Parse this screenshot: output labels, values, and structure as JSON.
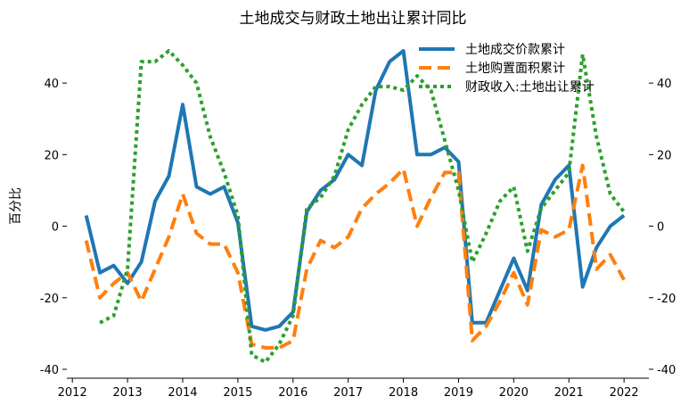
{
  "chart_data": {
    "type": "line",
    "title": "土地成交与财政土地出让累计同比",
    "ylabel": "百分比",
    "xlabel": "",
    "xlim": [
      2011.9,
      2022.45
    ],
    "ylim": [
      -42.5,
      52
    ],
    "x_ticks": [
      2012,
      2013,
      2014,
      2015,
      2016,
      2017,
      2018,
      2019,
      2020,
      2021,
      2022
    ],
    "y_ticks": [
      -40,
      -20,
      0,
      20,
      40
    ],
    "grid": false,
    "legend_position": "top-right",
    "series": [
      {
        "name": "土地成交价款累计",
        "color": "#1f77b4",
        "style": "solid",
        "x": [
          2012.25,
          2012.5,
          2012.75,
          2013.0,
          2013.25,
          2013.5,
          2013.75,
          2014.0,
          2014.25,
          2014.5,
          2014.75,
          2015.0,
          2015.25,
          2015.5,
          2015.75,
          2016.0,
          2016.25,
          2016.5,
          2016.75,
          2017.0,
          2017.25,
          2017.5,
          2017.75,
          2018.0,
          2018.25,
          2018.5,
          2018.75,
          2019.0,
          2019.25,
          2019.5,
          2019.75,
          2020.0,
          2020.25,
          2020.5,
          2020.75,
          2021.0,
          2021.25,
          2021.5,
          2021.75,
          2022.0
        ],
        "y": [
          3,
          -13,
          -11,
          -16,
          -10,
          7,
          14,
          34,
          11,
          9,
          11,
          1,
          -28,
          -29,
          -28,
          -24,
          4,
          10,
          13,
          20,
          17,
          38,
          46,
          49,
          20,
          20,
          22,
          18,
          -27,
          -27,
          -18,
          -9,
          -18,
          6,
          13,
          17,
          -17,
          -6,
          0,
          3
        ]
      },
      {
        "name": "土地购置面积累计",
        "color": "#ff7f0e",
        "style": "dashed",
        "x": [
          2012.25,
          2012.5,
          2012.75,
          2013.0,
          2013.25,
          2013.5,
          2013.75,
          2014.0,
          2014.25,
          2014.5,
          2014.75,
          2015.0,
          2015.25,
          2015.5,
          2015.75,
          2016.0,
          2016.25,
          2016.5,
          2016.75,
          2017.0,
          2017.25,
          2017.5,
          2017.75,
          2018.0,
          2018.25,
          2018.5,
          2018.75,
          2019.0,
          2019.25,
          2019.5,
          2019.75,
          2020.0,
          2020.25,
          2020.5,
          2020.75,
          2021.0,
          2021.25,
          2021.5,
          2021.75,
          2022.0
        ],
        "y": [
          -4,
          -20,
          -16,
          -13,
          -21,
          -12,
          -3,
          9,
          -2,
          -5,
          -5,
          -13,
          -33,
          -34,
          -34,
          -32,
          -12,
          -4,
          -6,
          -3,
          5,
          9,
          12,
          16,
          0,
          8,
          15,
          15,
          -32,
          -28,
          -21,
          -13,
          -22,
          -1,
          -3,
          -1,
          17,
          -12,
          -8,
          -15
        ]
      },
      {
        "name": "财政收入:土地出让累计",
        "color": "#2ca02c",
        "style": "dotted",
        "x": [
          2012.5,
          2012.75,
          2013.0,
          2013.25,
          2013.5,
          2013.75,
          2014.0,
          2014.25,
          2014.5,
          2014.75,
          2015.0,
          2015.25,
          2015.5,
          2015.75,
          2016.0,
          2016.25,
          2016.5,
          2016.75,
          2017.0,
          2017.25,
          2017.5,
          2017.75,
          2018.0,
          2018.25,
          2018.5,
          2018.75,
          2019.0,
          2019.25,
          2019.5,
          2019.75,
          2020.0,
          2020.25,
          2020.5,
          2020.75,
          2021.0,
          2021.25,
          2021.5,
          2021.75,
          2022.0
        ],
        "y": [
          -27,
          -25,
          -12,
          46,
          46,
          49,
          45,
          40,
          25,
          15,
          3,
          -36,
          -38,
          -33,
          -25,
          5,
          8,
          14,
          27,
          34,
          39,
          39,
          38,
          42,
          38,
          24,
          10,
          -10,
          -2,
          7,
          11,
          -7,
          5,
          10,
          15,
          48,
          25,
          9,
          4
        ]
      }
    ]
  }
}
